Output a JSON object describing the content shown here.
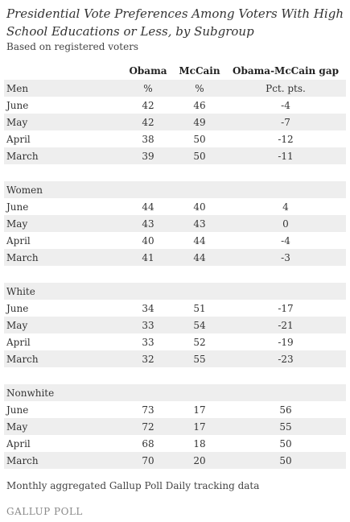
{
  "title": "Presidential Vote Preferences Among Voters With High School Educations or Less, by Subgroup",
  "subtitle": "Based on registered voters",
  "chart_data": {
    "type": "table",
    "columns": [
      "",
      "Obama",
      "McCain",
      "Obama-McCain gap"
    ],
    "groups": [
      {
        "name": "Men",
        "units": [
          "%",
          "%",
          "Pct. pts."
        ],
        "rows": [
          {
            "label": "June",
            "obama": "42",
            "mccain": "46",
            "gap": "-4"
          },
          {
            "label": "May",
            "obama": "42",
            "mccain": "49",
            "gap": "-7"
          },
          {
            "label": "April",
            "obama": "38",
            "mccain": "50",
            "gap": "-12"
          },
          {
            "label": "March",
            "obama": "39",
            "mccain": "50",
            "gap": "-11"
          }
        ]
      },
      {
        "name": "Women",
        "rows": [
          {
            "label": "June",
            "obama": "44",
            "mccain": "40",
            "gap": "4"
          },
          {
            "label": "May",
            "obama": "43",
            "mccain": "43",
            "gap": "0"
          },
          {
            "label": "April",
            "obama": "40",
            "mccain": "44",
            "gap": "-4"
          },
          {
            "label": "March",
            "obama": "41",
            "mccain": "44",
            "gap": "-3"
          }
        ]
      },
      {
        "name": "White",
        "rows": [
          {
            "label": "June",
            "obama": "34",
            "mccain": "51",
            "gap": "-17"
          },
          {
            "label": "May",
            "obama": "33",
            "mccain": "54",
            "gap": "-21"
          },
          {
            "label": "April",
            "obama": "33",
            "mccain": "52",
            "gap": "-19"
          },
          {
            "label": "March",
            "obama": "32",
            "mccain": "55",
            "gap": "-23"
          }
        ]
      },
      {
        "name": "Nonwhite",
        "rows": [
          {
            "label": "June",
            "obama": "73",
            "mccain": "17",
            "gap": "56"
          },
          {
            "label": "May",
            "obama": "72",
            "mccain": "17",
            "gap": "55"
          },
          {
            "label": "April",
            "obama": "68",
            "mccain": "18",
            "gap": "50"
          },
          {
            "label": "March",
            "obama": "70",
            "mccain": "20",
            "gap": "50"
          }
        ]
      }
    ]
  },
  "footnote": "Monthly aggregated Gallup Poll Daily tracking data",
  "logo_text": "GALLUP POLL",
  "colors": {
    "shade": "#eeeeee",
    "text": "#333333",
    "logo": "#8a8a8a"
  }
}
